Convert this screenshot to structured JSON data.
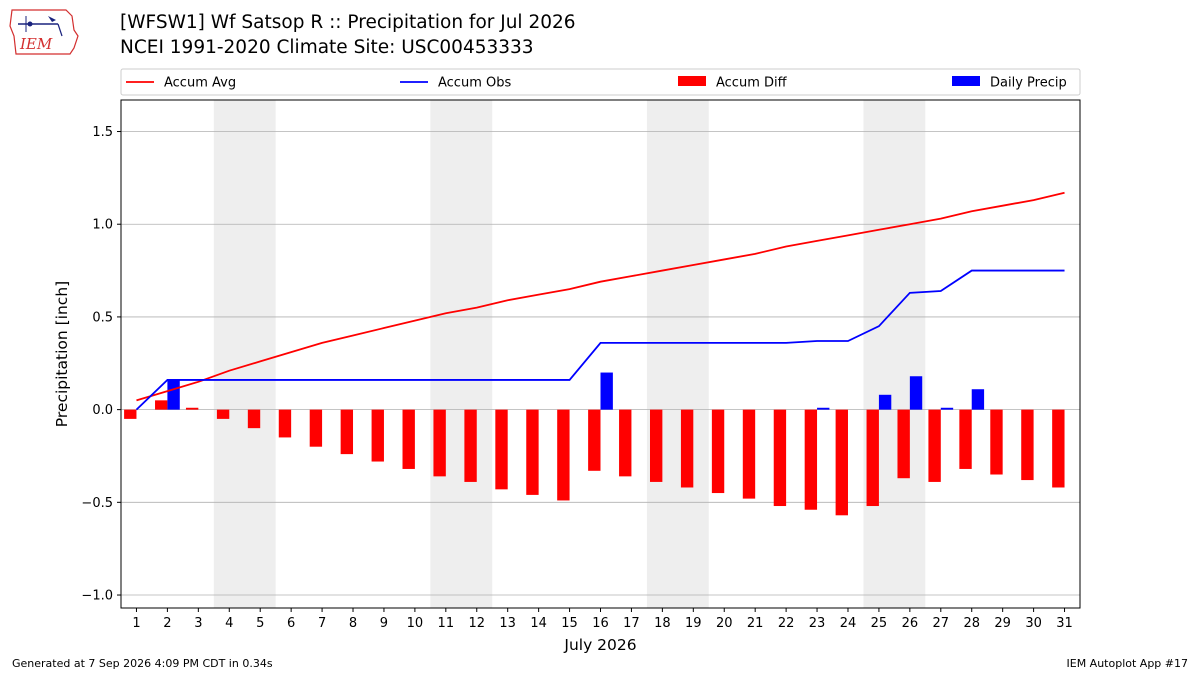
{
  "header": {
    "title_line1": "[WFSW1] Wf Satsop R :: Precipitation for Jul 2026",
    "title_line2": "NCEI 1991-2020 Climate Site: USC00453333"
  },
  "logo": {
    "icon": "iem-logo-icon",
    "text": "IEM",
    "color": "#d32f2f"
  },
  "footer": {
    "left": "Generated at 7 Sep 2026 4:09 PM CDT in 0.34s",
    "right": "IEM Autoplot App #17"
  },
  "colors": {
    "accum_avg": "#ff0000",
    "accum_obs": "#0000ff",
    "accum_diff": "#ff0000",
    "daily_precip": "#0000ff",
    "weekend_shade": "#eeeeee",
    "grid": "#b0b0b0"
  },
  "chart_data": {
    "type": "bar",
    "xlabel": "July 2026",
    "ylabel": "Precipitation [inch]",
    "xlim": [
      0.5,
      31.5
    ],
    "ylim": [
      -1.07,
      1.67
    ],
    "yticks": [
      -1.0,
      -0.5,
      0.0,
      0.5,
      1.0,
      1.5
    ],
    "ytick_labels": [
      "−1.0",
      "−0.5",
      "0.0",
      "0.5",
      "1.0",
      "1.5"
    ],
    "grid": "horizontal",
    "legend_position": "top",
    "days": [
      1,
      2,
      3,
      4,
      5,
      6,
      7,
      8,
      9,
      10,
      11,
      12,
      13,
      14,
      15,
      16,
      17,
      18,
      19,
      20,
      21,
      22,
      23,
      24,
      25,
      26,
      27,
      28,
      29,
      30,
      31
    ],
    "weekend_spans": [
      [
        3.5,
        5.5
      ],
      [
        10.5,
        12.5
      ],
      [
        17.5,
        19.5
      ],
      [
        24.5,
        26.5
      ]
    ],
    "series": [
      {
        "name": "Accum Avg",
        "kind": "line",
        "values": [
          0.05,
          0.1,
          0.15,
          0.21,
          0.26,
          0.31,
          0.36,
          0.4,
          0.44,
          0.48,
          0.52,
          0.55,
          0.59,
          0.62,
          0.65,
          0.69,
          0.72,
          0.75,
          0.78,
          0.81,
          0.84,
          0.88,
          0.91,
          0.94,
          0.97,
          1.0,
          1.03,
          1.07,
          1.1,
          1.13,
          1.17
        ]
      },
      {
        "name": "Accum Obs",
        "kind": "line",
        "values": [
          0.0,
          0.16,
          0.16,
          0.16,
          0.16,
          0.16,
          0.16,
          0.16,
          0.16,
          0.16,
          0.16,
          0.16,
          0.16,
          0.16,
          0.16,
          0.36,
          0.36,
          0.36,
          0.36,
          0.36,
          0.36,
          0.36,
          0.37,
          0.37,
          0.45,
          0.63,
          0.64,
          0.75,
          0.75,
          0.75,
          0.75
        ]
      },
      {
        "name": "Accum Diff",
        "kind": "bar",
        "values": [
          -0.05,
          0.05,
          0.01,
          -0.05,
          -0.1,
          -0.15,
          -0.2,
          -0.24,
          -0.28,
          -0.32,
          -0.36,
          -0.39,
          -0.43,
          -0.46,
          -0.49,
          -0.33,
          -0.36,
          -0.39,
          -0.42,
          -0.45,
          -0.48,
          -0.52,
          -0.54,
          -0.57,
          -0.52,
          -0.37,
          -0.39,
          -0.32,
          -0.35,
          -0.38,
          -0.42
        ]
      },
      {
        "name": "Daily Precip",
        "kind": "bar",
        "values": [
          0,
          0.16,
          0,
          0,
          0,
          0,
          0,
          0,
          0,
          0,
          0,
          0,
          0,
          0,
          0,
          0.2,
          0,
          0,
          0,
          0,
          0,
          0,
          0.01,
          0,
          0.08,
          0.18,
          0.01,
          0.11,
          0,
          0,
          0
        ]
      }
    ]
  }
}
